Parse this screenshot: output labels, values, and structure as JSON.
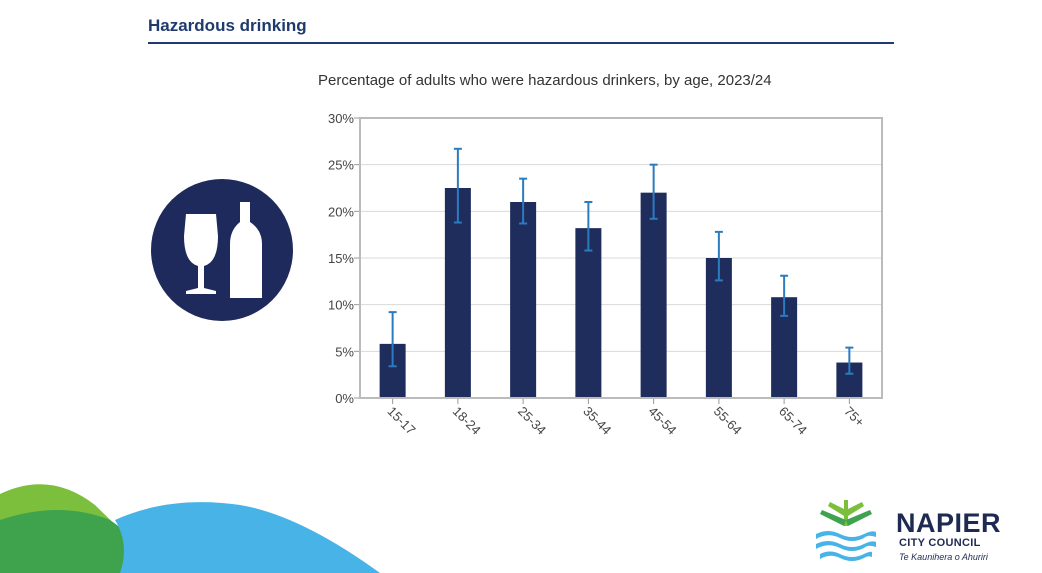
{
  "section": {
    "title": "Hazardous drinking"
  },
  "icon": {
    "name": "wine-glass-bottle-icon"
  },
  "chart_data": {
    "type": "bar",
    "title": "Percentage of adults who were hazardous drinkers, by age, 2023/24",
    "xlabel": "",
    "ylabel": "",
    "categories": [
      "15-17",
      "18-24",
      "25-34",
      "35-44",
      "45-54",
      "55-64",
      "65-74",
      "75+"
    ],
    "values": [
      5.8,
      22.5,
      21.0,
      18.2,
      22.0,
      15.0,
      10.8,
      3.8
    ],
    "error_low": [
      3.4,
      18.8,
      18.7,
      15.8,
      19.2,
      12.6,
      8.8,
      2.6
    ],
    "error_high": [
      9.2,
      26.7,
      23.5,
      21.0,
      25.0,
      17.8,
      13.1,
      5.4
    ],
    "ylim": [
      0,
      30
    ],
    "yticks": [
      0,
      5,
      10,
      15,
      20,
      25,
      30
    ],
    "ytick_labels": [
      "0%",
      "5%",
      "10%",
      "15%",
      "20%",
      "25%",
      "30%"
    ],
    "grid": true,
    "bar_color": "#1f2d5c",
    "error_color": "#2b7bbf"
  },
  "branding": {
    "name": "NAPIER",
    "sub": "CITY COUNCIL",
    "tagline": "Te Kaunihera o Ahuriri"
  },
  "colors": {
    "navy": "#1e3a6e",
    "green": "#7cbf3c",
    "dark_green": "#3fa34d",
    "sky_blue": "#47b3e6"
  }
}
